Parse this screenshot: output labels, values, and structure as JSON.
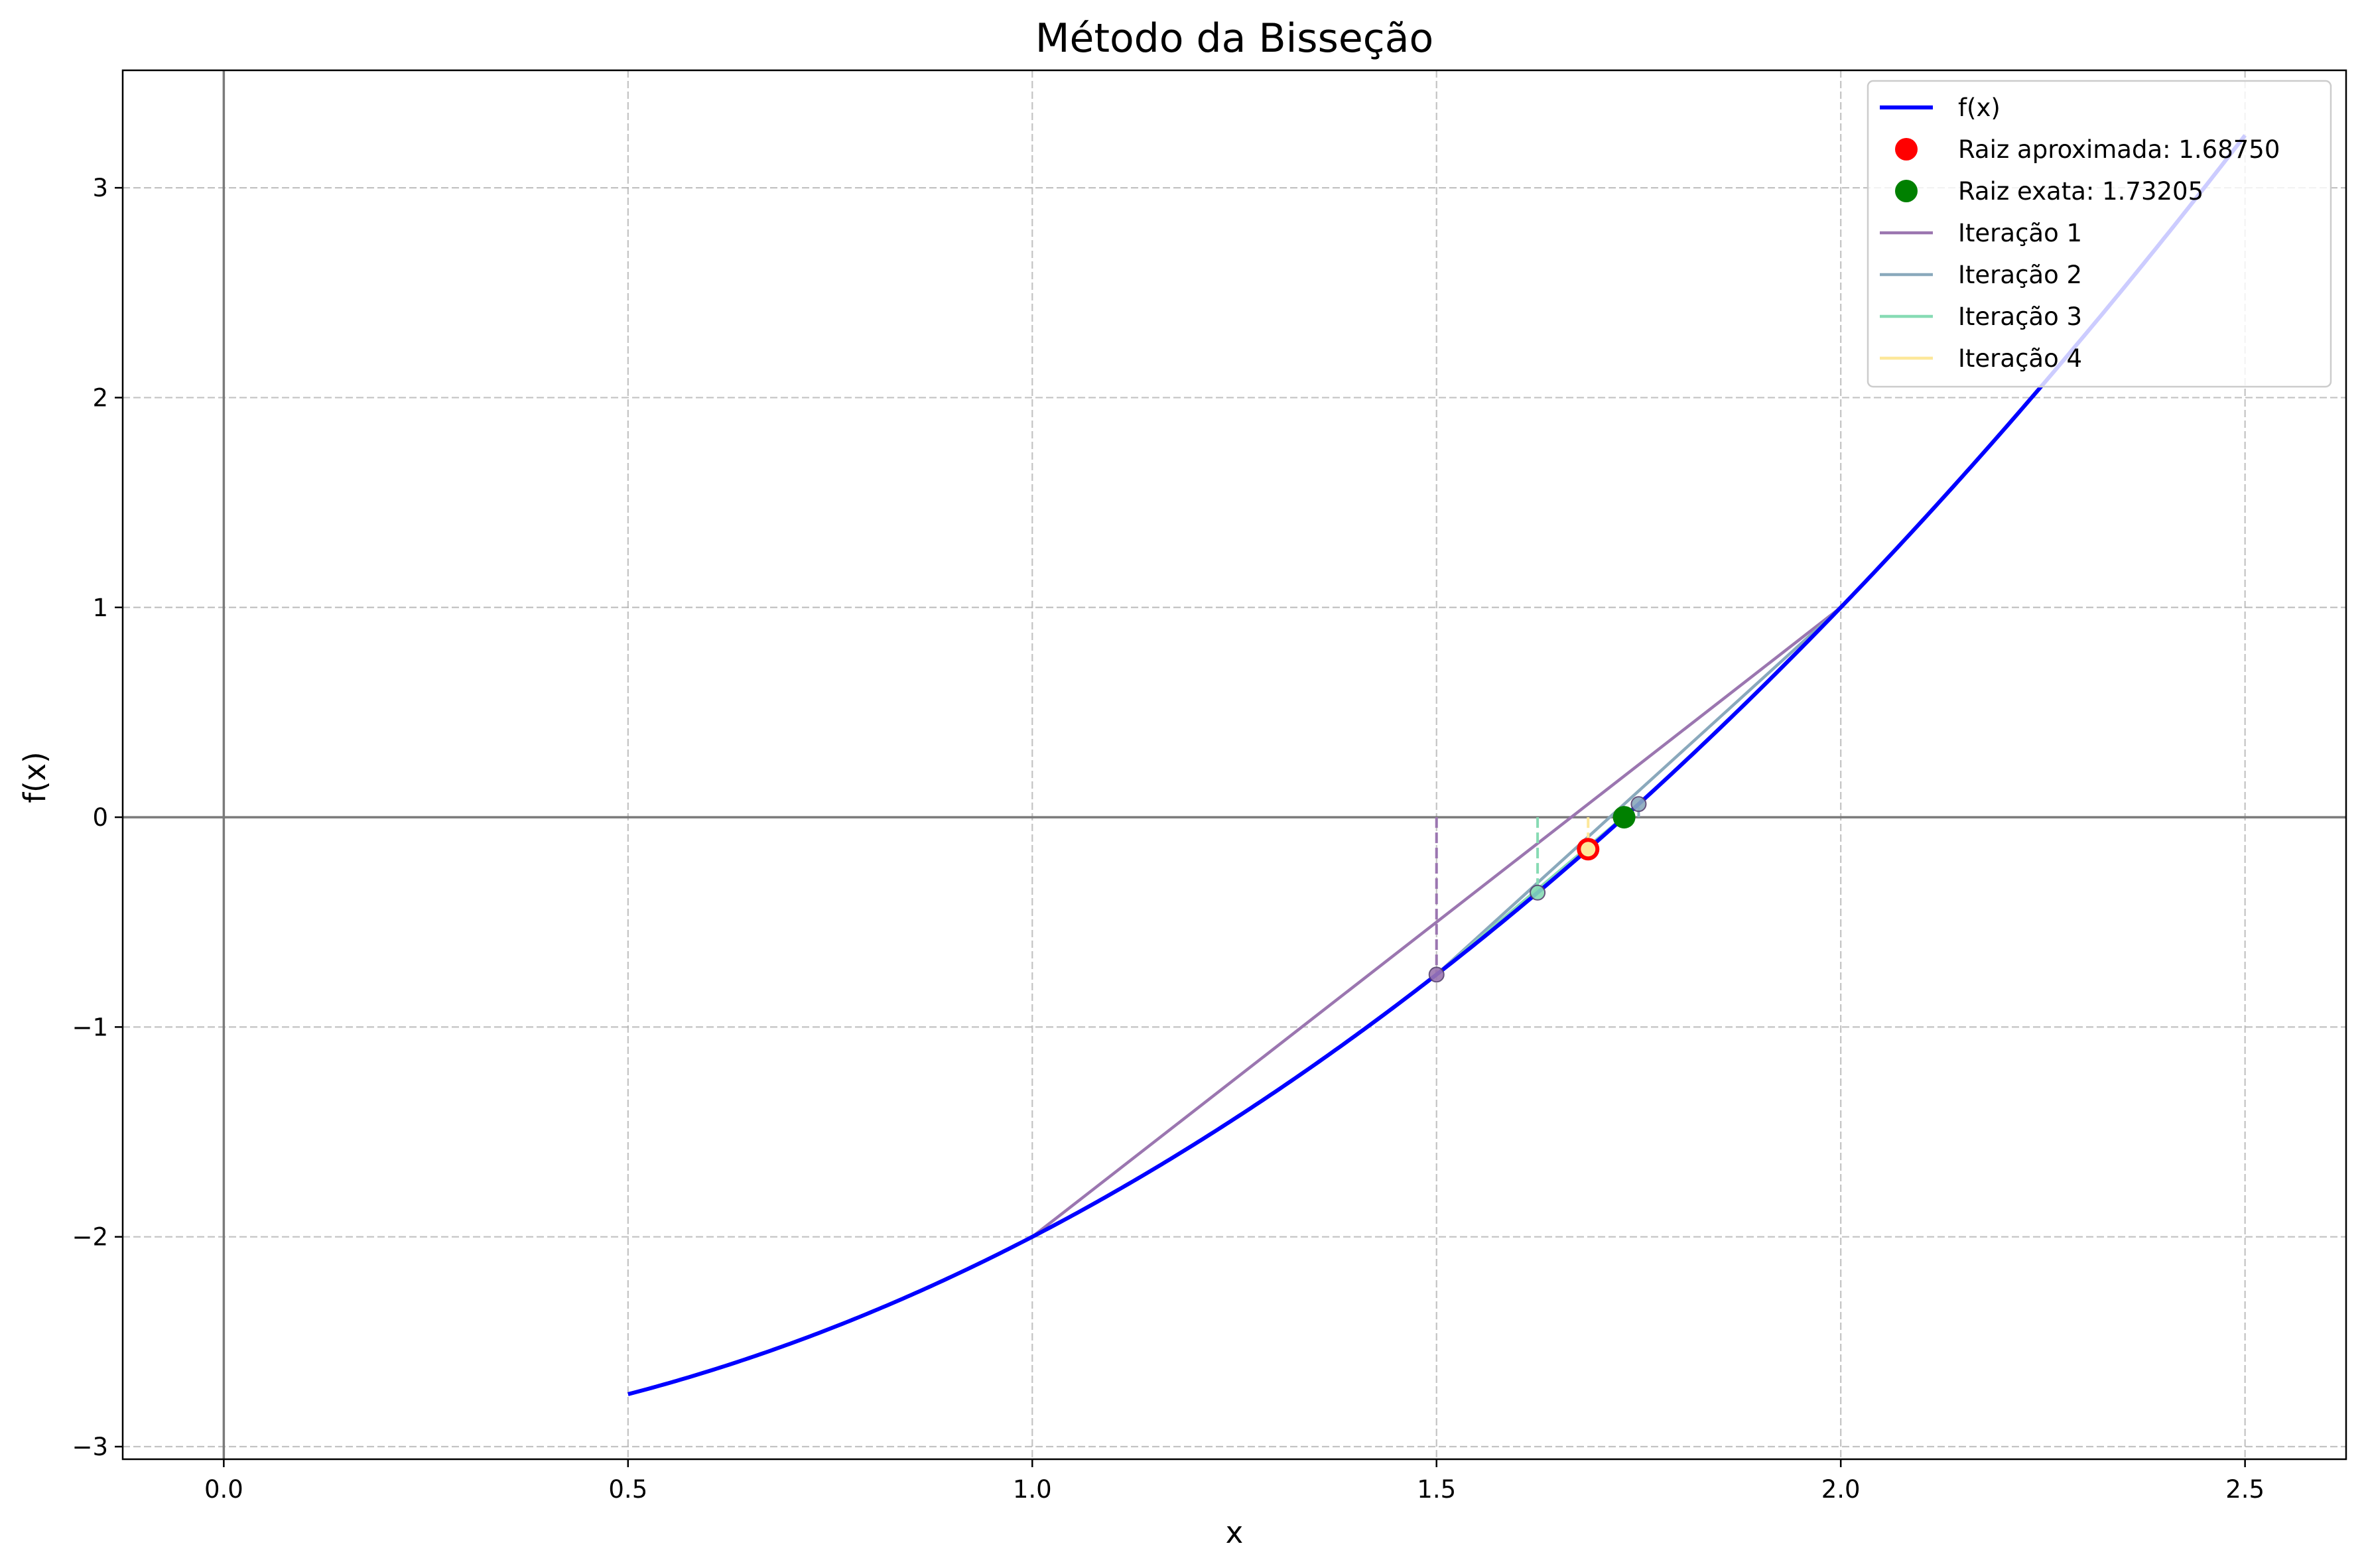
{
  "chart_data": {
    "type": "line",
    "title": "Método da Bisseção",
    "xlabel": "x",
    "ylabel": "f(x)",
    "xlim": [
      -0.125,
      2.625
    ],
    "ylim": [
      -3.06,
      3.56
    ],
    "x_ticks": [
      0.0,
      0.5,
      1.0,
      1.5,
      2.0,
      2.5
    ],
    "x_tick_labels": [
      "0.0",
      "0.5",
      "1.0",
      "1.5",
      "2.0",
      "2.5"
    ],
    "y_ticks": [
      -3,
      -2,
      -1,
      0,
      1,
      2,
      3
    ],
    "y_tick_labels": [
      "−3",
      "−2",
      "−1",
      "0",
      "1",
      "2",
      "3"
    ],
    "grid": true,
    "grid_style": "dashed",
    "legend_position": "top-right",
    "function": {
      "name": "f(x)",
      "color": "#0000ff",
      "x_range": [
        0.5,
        2.5
      ],
      "samples": [
        {
          "x": 0.5,
          "y": -2.75
        },
        {
          "x": 0.75,
          "y": -2.4375
        },
        {
          "x": 1.0,
          "y": -2.0
        },
        {
          "x": 1.25,
          "y": -1.4375
        },
        {
          "x": 1.5,
          "y": -0.75
        },
        {
          "x": 1.75,
          "y": 0.0625
        },
        {
          "x": 2.0,
          "y": 1.0
        },
        {
          "x": 2.25,
          "y": 2.0625
        },
        {
          "x": 2.5,
          "y": 3.25
        }
      ]
    },
    "approx_root": {
      "label": "Raiz aproximada: 1.68750",
      "x": 1.6875,
      "y": -0.1523,
      "color": "#ff0000"
    },
    "exact_root": {
      "label": "Raiz exata: 1.73205",
      "x": 1.73205,
      "y": 0.0,
      "color": "#008000"
    },
    "iterations": [
      {
        "name": "Iteração 1",
        "color": "#9b76b0",
        "a": 1.0,
        "b": 2.0,
        "fa": -2.0,
        "fb": 1.0,
        "c": 1.5,
        "fc": -0.75
      },
      {
        "name": "Iteração 2",
        "color": "#8aa9bc",
        "a": 1.5,
        "b": 2.0,
        "fa": -0.75,
        "fb": 1.0,
        "c": 1.75,
        "fc": 0.0625
      },
      {
        "name": "Iteração 3",
        "color": "#87dbb4",
        "a": 1.5,
        "b": 1.75,
        "fa": -0.75,
        "fb": 0.0625,
        "c": 1.625,
        "fc": -0.3594
      },
      {
        "name": "Iteração 4",
        "color": "#fde89a",
        "a": 1.625,
        "b": 1.75,
        "fa": -0.3594,
        "fb": 0.0625,
        "c": 1.6875,
        "fc": -0.1523
      }
    ],
    "legend": [
      {
        "label": "f(x)",
        "kind": "line",
        "color": "#0000ff"
      },
      {
        "label": "Raiz aproximada: 1.68750",
        "kind": "marker",
        "color": "#ff0000"
      },
      {
        "label": "Raiz exata: 1.73205",
        "kind": "marker",
        "color": "#008000"
      },
      {
        "label": "Iteração 1",
        "kind": "line",
        "color": "#9b76b0"
      },
      {
        "label": "Iteração 2",
        "kind": "line",
        "color": "#8aa9bc"
      },
      {
        "label": "Iteração 3",
        "kind": "line",
        "color": "#87dbb4"
      },
      {
        "label": "Iteração 4",
        "kind": "line",
        "color": "#fde89a"
      }
    ]
  }
}
